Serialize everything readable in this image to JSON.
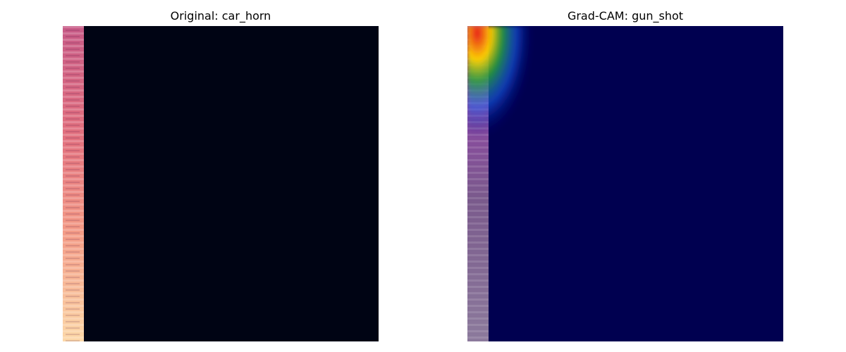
{
  "chart_data": [
    {
      "type": "heatmap",
      "title": "Original: car_horn",
      "xlabel": "",
      "ylabel": "",
      "grid": false,
      "colormap": "magma",
      "background_color": "#000414",
      "band_color_top": "#c75a86",
      "band_color_bottom": "#fcd8a8"
    },
    {
      "type": "heatmap",
      "title": "Grad-CAM: gun_shot",
      "xlabel": "",
      "ylabel": "",
      "grid": false,
      "colormap": "jet",
      "background_color": "#000050",
      "hotspot_colors": [
        "#e81c1c",
        "#ffd400",
        "#26a63a",
        "#1a66ff",
        "#000080"
      ]
    }
  ]
}
